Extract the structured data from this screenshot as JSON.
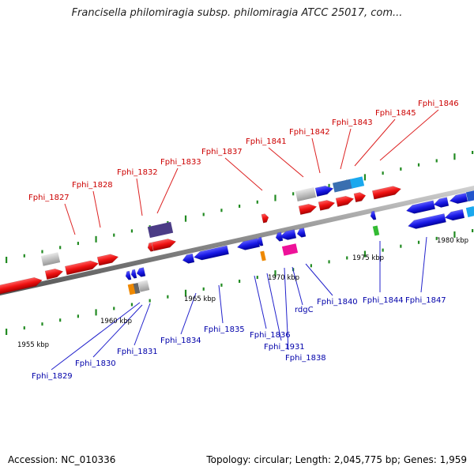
{
  "title": "Francisella philomiragia subsp. philomiragia ATCC 25017, com...",
  "footer": {
    "accession": "Accession: NC_010336",
    "topology": "Topology: circular; Length: 2,045,775 bp; Genes: 1,959"
  },
  "scale_labels": [
    "1955 kbp",
    "1960 kbp",
    "1965 kbp",
    "1970 kbp",
    "1975 kbp",
    "1980 kbp"
  ],
  "genes_top": [
    "Fphi_1827",
    "Fphi_1828",
    "Fphi_1832",
    "Fphi_1833",
    "Fphi_1837",
    "Fphi_1841",
    "Fphi_1842",
    "Fphi_1843",
    "Fphi_1845",
    "Fphi_1846"
  ],
  "genes_bottom": [
    "Fphi_1829",
    "Fphi_1830",
    "Fphi_1831",
    "Fphi_1834",
    "Fphi_1835",
    "Fphi_1836",
    "Fphi_1931",
    "Fphi_1838",
    "rdgC",
    "Fphi_1840",
    "Fphi_1844",
    "Fphi_1847"
  ],
  "colors": {
    "forward": "#ee1111",
    "reverse": "#1a1ae6",
    "backbone": "#8a8a8a",
    "tick": "#228b22",
    "top_label": "#cc0000",
    "bottom_label": "#0000aa"
  }
}
